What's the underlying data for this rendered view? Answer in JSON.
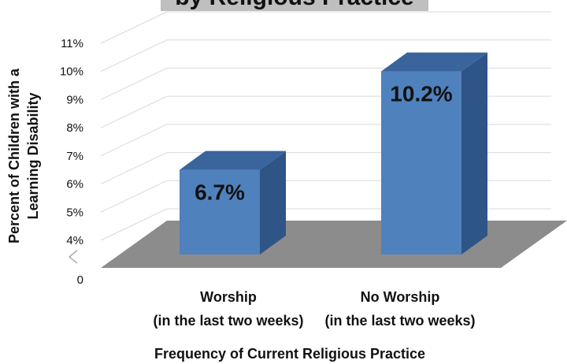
{
  "chart_data": {
    "type": "bar",
    "title": "by Religious Practice",
    "categories": [
      [
        "Worship",
        "(in the last two weeks)"
      ],
      [
        "No Worship",
        "(in the last two weeks)"
      ]
    ],
    "values": [
      6.7,
      10.2
    ],
    "data_labels": [
      "6.7%",
      "10.2%"
    ],
    "xlabel": "Frequency of Current Religious Practice",
    "ylabel": [
      "Percent of Children with a",
      "Learning Disability"
    ],
    "yticks": [
      "0",
      "4%",
      "5%",
      "6%",
      "7%",
      "8%",
      "9%",
      "10%",
      "11%"
    ],
    "ylim": [
      4,
      11
    ],
    "axis_break": true,
    "grid": true,
    "colors": {
      "bar_front": "#4f81bd",
      "bar_side": "#2f5486",
      "bar_top": "#3a649c",
      "floor": "#8c8c8c",
      "title_box": "#bfbfbf",
      "grid": "#d9d9d9"
    }
  }
}
